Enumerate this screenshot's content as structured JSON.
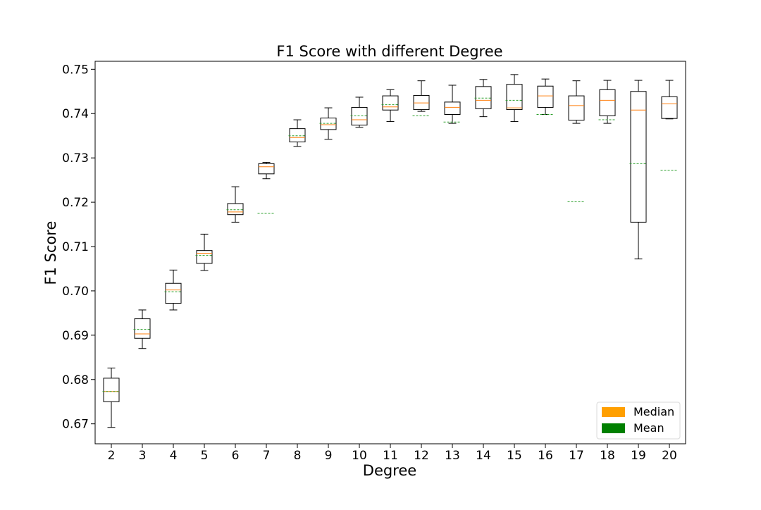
{
  "chart_data": {
    "type": "box",
    "title": "F1 Score with different Degree",
    "xlabel": "Degree",
    "ylabel": "F1 Score",
    "ylim": [
      0.6655,
      0.7518
    ],
    "yticks": [
      0.67,
      0.68,
      0.69,
      0.7,
      0.71,
      0.72,
      0.73,
      0.74,
      0.75
    ],
    "ytick_labels": [
      "0.67",
      "0.68",
      "0.69",
      "0.70",
      "0.71",
      "0.72",
      "0.73",
      "0.74",
      "0.75"
    ],
    "categories": [
      "2",
      "3",
      "4",
      "5",
      "6",
      "7",
      "8",
      "9",
      "10",
      "11",
      "12",
      "13",
      "14",
      "15",
      "16",
      "17",
      "18",
      "19",
      "20"
    ],
    "boxes": [
      {
        "degree": "2",
        "whisker_low": 0.6692,
        "q1": 0.675,
        "median": 0.6773,
        "q3": 0.6803,
        "whisker_high": 0.6826,
        "mean": 0.6773
      },
      {
        "degree": "3",
        "whisker_low": 0.687,
        "q1": 0.6893,
        "median": 0.6903,
        "q3": 0.6937,
        "whisker_high": 0.6957,
        "mean": 0.6913
      },
      {
        "degree": "4",
        "whisker_low": 0.6957,
        "q1": 0.6972,
        "median": 0.7002,
        "q3": 0.7017,
        "whisker_high": 0.7047,
        "mean": 0.6998
      },
      {
        "degree": "5",
        "whisker_low": 0.7046,
        "q1": 0.7062,
        "median": 0.7085,
        "q3": 0.7091,
        "whisker_high": 0.7128,
        "mean": 0.708
      },
      {
        "degree": "6",
        "whisker_low": 0.7155,
        "q1": 0.7172,
        "median": 0.7178,
        "q3": 0.7197,
        "whisker_high": 0.7235,
        "mean": 0.7183
      },
      {
        "degree": "7",
        "whisker_low": 0.7253,
        "q1": 0.7264,
        "median": 0.728,
        "q3": 0.7287,
        "whisker_high": 0.729,
        "mean": 0.7175
      },
      {
        "degree": "8",
        "whisker_low": 0.7326,
        "q1": 0.7336,
        "median": 0.7346,
        "q3": 0.7366,
        "whisker_high": 0.7386,
        "mean": 0.735
      },
      {
        "degree": "9",
        "whisker_low": 0.7342,
        "q1": 0.7364,
        "median": 0.7375,
        "q3": 0.739,
        "whisker_high": 0.7413,
        "mean": 0.7378
      },
      {
        "degree": "10",
        "whisker_low": 0.7369,
        "q1": 0.7374,
        "median": 0.7386,
        "q3": 0.7414,
        "whisker_high": 0.7437,
        "mean": 0.7395
      },
      {
        "degree": "11",
        "whisker_low": 0.7382,
        "q1": 0.7408,
        "median": 0.7415,
        "q3": 0.744,
        "whisker_high": 0.7454,
        "mean": 0.742
      },
      {
        "degree": "12",
        "whisker_low": 0.7405,
        "q1": 0.7409,
        "median": 0.7424,
        "q3": 0.7441,
        "whisker_high": 0.7474,
        "mean": 0.7395
      },
      {
        "degree": "13",
        "whisker_low": 0.7378,
        "q1": 0.7398,
        "median": 0.7414,
        "q3": 0.7426,
        "whisker_high": 0.7464,
        "mean": 0.7381
      },
      {
        "degree": "14",
        "whisker_low": 0.7393,
        "q1": 0.7411,
        "median": 0.743,
        "q3": 0.7461,
        "whisker_high": 0.7477,
        "mean": 0.7435
      },
      {
        "degree": "15",
        "whisker_low": 0.7382,
        "q1": 0.7409,
        "median": 0.7413,
        "q3": 0.7466,
        "whisker_high": 0.7488,
        "mean": 0.743
      },
      {
        "degree": "16",
        "whisker_low": 0.7398,
        "q1": 0.7414,
        "median": 0.744,
        "q3": 0.7462,
        "whisker_high": 0.7478,
        "mean": 0.7398
      },
      {
        "degree": "17",
        "whisker_low": 0.7378,
        "q1": 0.7385,
        "median": 0.7418,
        "q3": 0.744,
        "whisker_high": 0.7474,
        "mean": 0.7201
      },
      {
        "degree": "18",
        "whisker_low": 0.7378,
        "q1": 0.7395,
        "median": 0.743,
        "q3": 0.7454,
        "whisker_high": 0.7475,
        "mean": 0.7386
      },
      {
        "degree": "19",
        "whisker_low": 0.7072,
        "q1": 0.7155,
        "median": 0.7408,
        "q3": 0.745,
        "whisker_high": 0.7475,
        "mean": 0.7287
      },
      {
        "degree": "20",
        "whisker_low": 0.7388,
        "q1": 0.7389,
        "median": 0.7422,
        "q3": 0.7438,
        "whisker_high": 0.7475,
        "mean": 0.7272
      }
    ],
    "legend": {
      "placement": "lower-right",
      "entries": [
        {
          "label": "Median",
          "color": "#ff9f00"
        },
        {
          "label": "Mean",
          "color": "#008000"
        }
      ]
    },
    "colors": {
      "median": "#ff7f0e",
      "mean": "#2ca02c",
      "box": "#000000"
    },
    "grid": false
  }
}
